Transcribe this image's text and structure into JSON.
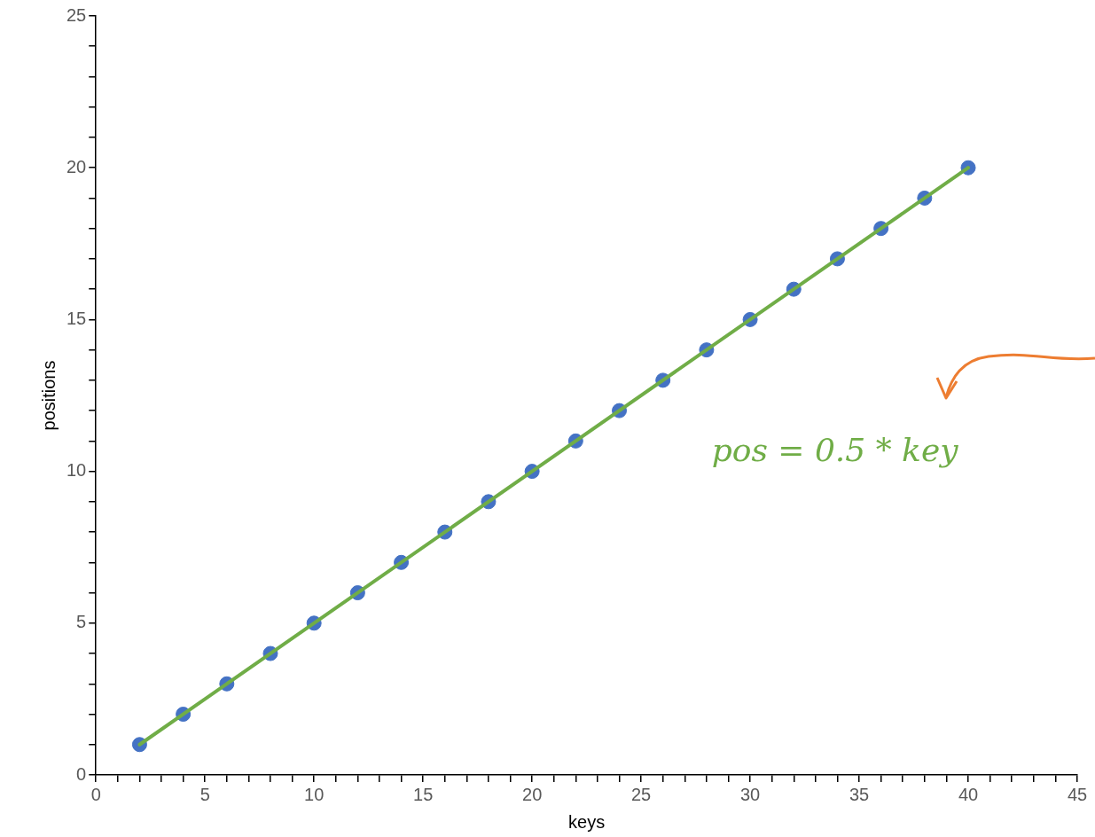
{
  "chart_data": {
    "type": "scatter",
    "xlabel": "keys",
    "ylabel": "positions",
    "x": [
      2,
      4,
      6,
      8,
      10,
      12,
      14,
      16,
      18,
      20,
      22,
      24,
      26,
      28,
      30,
      32,
      34,
      36,
      38,
      40
    ],
    "series": [
      {
        "type": "scatter",
        "color": "#4472c4",
        "marker": "circle",
        "values": [
          1,
          2,
          3,
          4,
          5,
          6,
          7,
          8,
          9,
          10,
          11,
          12,
          13,
          14,
          15,
          16,
          17,
          18,
          19,
          20
        ]
      },
      {
        "type": "line",
        "color": "#70ad47",
        "marker": "none",
        "x": [
          2,
          40
        ],
        "values": [
          1,
          20
        ]
      }
    ],
    "xlim": [
      0,
      45
    ],
    "xticks": [
      0,
      {
        "value": 1,
        "label": null
      },
      {
        "value": 2,
        "label": null
      },
      {
        "value": 3,
        "label": null
      },
      {
        "value": 4,
        "label": null
      },
      5,
      {
        "value": 6,
        "label": null
      },
      {
        "value": 7,
        "label": null
      },
      {
        "value": 8,
        "label": null
      },
      {
        "value": 9,
        "label": null
      },
      10,
      {
        "value": 11,
        "label": null
      },
      {
        "value": 12,
        "label": null
      },
      {
        "value": 13,
        "label": null
      },
      {
        "value": 14,
        "label": null
      },
      15,
      {
        "value": 16,
        "label": null
      },
      {
        "value": 17,
        "label": null
      },
      {
        "value": 18,
        "label": null
      },
      {
        "value": 19,
        "label": null
      },
      20,
      {
        "value": 21,
        "label": null
      },
      {
        "value": 22,
        "label": null
      },
      {
        "value": 23,
        "label": null
      },
      {
        "value": 24,
        "label": null
      },
      25,
      {
        "value": 26,
        "label": null
      },
      {
        "value": 27,
        "label": null
      },
      {
        "value": 28,
        "label": null
      },
      {
        "value": 29,
        "label": null
      },
      30,
      {
        "value": 31,
        "label": null
      },
      {
        "value": 32,
        "label": null
      },
      {
        "value": 33,
        "label": null
      },
      {
        "value": 34,
        "label": null
      },
      35,
      {
        "value": 36,
        "label": null
      },
      {
        "value": 37,
        "label": null
      },
      {
        "value": 38,
        "label": null
      },
      {
        "value": 39,
        "label": null
      },
      40,
      {
        "value": 41,
        "label": null
      },
      {
        "value": 42,
        "label": null
      },
      {
        "value": 43,
        "label": null
      },
      {
        "value": 44,
        "label": null
      },
      45
    ],
    "ylim": [
      0,
      25
    ],
    "yticks": [
      0,
      {
        "value": 1,
        "label": null
      },
      {
        "value": 2,
        "label": null
      },
      {
        "value": 3,
        "label": null
      },
      {
        "value": 4,
        "label": null
      },
      5,
      {
        "value": 6,
        "label": null
      },
      {
        "value": 7,
        "label": null
      },
      {
        "value": 8,
        "label": null
      },
      {
        "value": 9,
        "label": null
      },
      10,
      {
        "value": 11,
        "label": null
      },
      {
        "value": 12,
        "label": null
      },
      {
        "value": 13,
        "label": null
      },
      {
        "value": 14,
        "label": null
      },
      15,
      {
        "value": 16,
        "label": null
      },
      {
        "value": 17,
        "label": null
      },
      {
        "value": 18,
        "label": null
      },
      {
        "value": 19,
        "label": null
      },
      20,
      {
        "value": 21,
        "label": null
      },
      {
        "value": 22,
        "label": null
      },
      {
        "value": 23,
        "label": null
      },
      {
        "value": 24,
        "label": null
      },
      25
    ],
    "annotations": [
      "pos = 0.5 * key"
    ],
    "grid": false,
    "legend": false
  }
}
